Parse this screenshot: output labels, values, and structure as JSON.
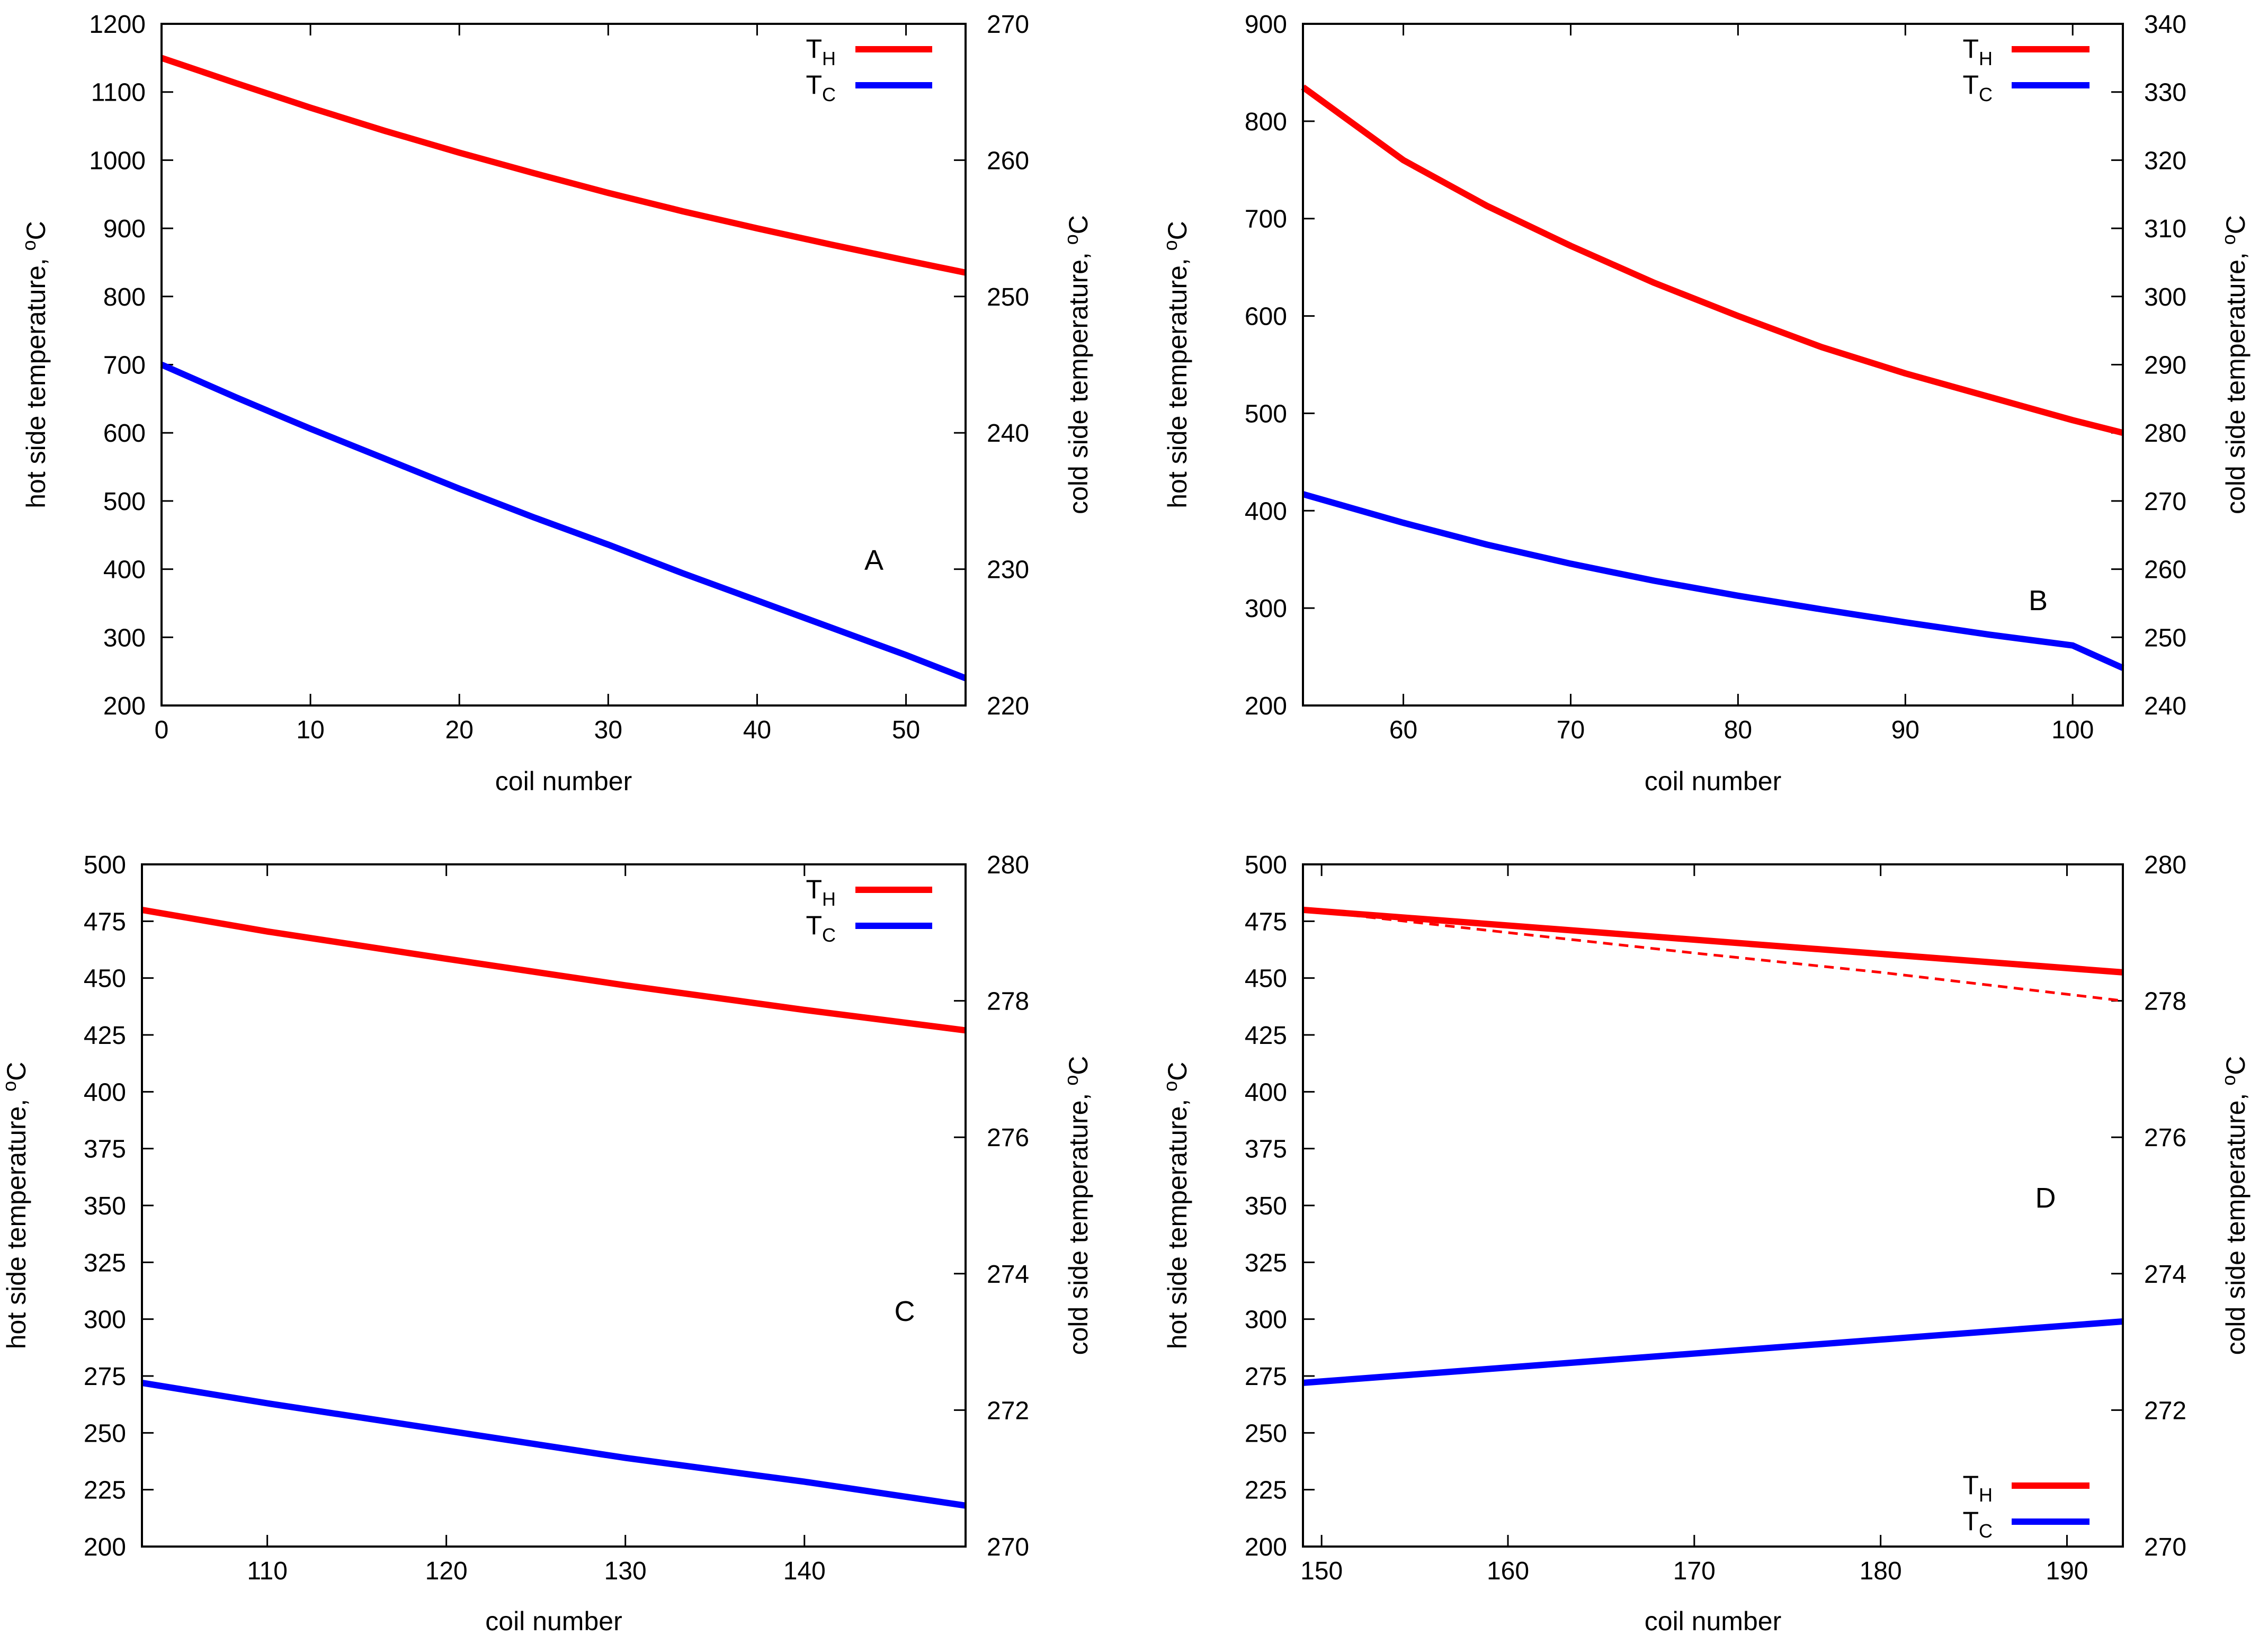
{
  "chart_data": [
    {
      "type": "line",
      "panel": "A",
      "xlabel": "coil number",
      "ylabel": "hot side temperature, ",
      "ylabel_sup": "o",
      "ylabel_unit": "C",
      "y2label": "cold side temperature, ",
      "y2label_sup": "o",
      "y2label_unit": "C",
      "xlim": [
        0,
        54
      ],
      "ylim": [
        200,
        1200
      ],
      "y2lim": [
        220,
        270
      ],
      "xticks": [
        0,
        10,
        20,
        30,
        40,
        50
      ],
      "yticks": [
        200,
        300,
        400,
        500,
        600,
        700,
        800,
        900,
        1000,
        1100,
        1200
      ],
      "y2ticks": [
        220,
        230,
        240,
        250,
        260,
        270
      ],
      "legend": {
        "position": "top-right",
        "entries": [
          {
            "main": "T",
            "sub": "H",
            "color": "#ff0000"
          },
          {
            "main": "T",
            "sub": "C",
            "color": "#0000ff"
          }
        ]
      },
      "series": [
        {
          "name": "TH",
          "axis": "y",
          "color": "#ff0000",
          "dashed": false,
          "x": [
            0,
            5,
            10,
            15,
            20,
            25,
            30,
            35,
            40,
            45,
            50,
            54
          ],
          "values": [
            1150,
            1113,
            1077,
            1043,
            1011,
            981,
            952,
            925,
            900,
            876,
            853,
            835
          ]
        },
        {
          "name": "TC",
          "axis": "y2",
          "color": "#0000ff",
          "dashed": false,
          "x": [
            0,
            5,
            10,
            15,
            20,
            25,
            30,
            35,
            40,
            45,
            50,
            54
          ],
          "values": [
            245,
            242.6,
            240.3,
            238.1,
            235.9,
            233.8,
            231.8,
            229.7,
            227.7,
            225.7,
            223.7,
            222
          ]
        }
      ]
    },
    {
      "type": "line",
      "panel": "B",
      "xlabel": "coil number",
      "ylabel": "hot side temperature, ",
      "ylabel_sup": "o",
      "ylabel_unit": "C",
      "y2label": "cold side temperature, ",
      "y2label_sup": "o",
      "y2label_unit": "C",
      "xlim": [
        54,
        103
      ],
      "ylim": [
        200,
        900
      ],
      "y2lim": [
        240,
        340
      ],
      "xticks": [
        60,
        70,
        80,
        90,
        100
      ],
      "yticks": [
        200,
        300,
        400,
        500,
        600,
        700,
        800,
        900
      ],
      "y2ticks": [
        240,
        250,
        260,
        270,
        280,
        290,
        300,
        310,
        320,
        330,
        340
      ],
      "legend": {
        "position": "top-right",
        "entries": [
          {
            "main": "T",
            "sub": "H",
            "color": "#ff0000"
          },
          {
            "main": "T",
            "sub": "C",
            "color": "#0000ff"
          }
        ]
      },
      "series": [
        {
          "name": "TH",
          "axis": "y",
          "color": "#ff0000",
          "dashed": false,
          "x": [
            54,
            60,
            65,
            70,
            75,
            80,
            85,
            90,
            95,
            100,
            103
          ],
          "values": [
            835,
            760,
            713,
            672,
            634,
            600,
            568,
            541,
            517,
            493,
            480
          ]
        },
        {
          "name": "TC",
          "axis": "y2",
          "color": "#0000ff",
          "dashed": false,
          "x": [
            54,
            60,
            65,
            70,
            75,
            80,
            85,
            90,
            95,
            100,
            103
          ],
          "values": [
            271,
            266.8,
            263.6,
            260.8,
            258.3,
            256.1,
            254.1,
            252.2,
            250.4,
            248.8,
            245.5
          ]
        }
      ]
    },
    {
      "type": "line",
      "panel": "C",
      "xlabel": "coil number",
      "ylabel": "hot side temperature, ",
      "ylabel_sup": "o",
      "ylabel_unit": "C",
      "y2label": "cold side temperature, ",
      "y2label_sup": "o",
      "y2label_unit": "C",
      "xlim": [
        103,
        149
      ],
      "ylim": [
        200,
        500
      ],
      "y2lim": [
        270,
        280
      ],
      "xticks": [
        110,
        120,
        130,
        140
      ],
      "yticks": [
        200,
        225,
        250,
        275,
        300,
        325,
        350,
        375,
        400,
        425,
        450,
        475,
        500
      ],
      "y2ticks": [
        270,
        272,
        274,
        276,
        278,
        280
      ],
      "legend": {
        "position": "top-right",
        "entries": [
          {
            "main": "T",
            "sub": "H",
            "color": "#ff0000"
          },
          {
            "main": "T",
            "sub": "C",
            "color": "#0000ff"
          }
        ]
      },
      "series": [
        {
          "name": "TH",
          "axis": "y",
          "color": "#ff0000",
          "dashed": false,
          "x": [
            103,
            110,
            120,
            130,
            140,
            149
          ],
          "values": [
            480,
            470.5,
            458.5,
            446.8,
            436,
            427
          ]
        },
        {
          "name": "TC",
          "axis": "y2",
          "color": "#0000ff",
          "dashed": false,
          "x": [
            103,
            110,
            120,
            130,
            140,
            149
          ],
          "values": [
            272.4,
            272.1,
            271.7,
            271.3,
            270.95,
            270.6
          ]
        }
      ]
    },
    {
      "type": "line",
      "panel": "D",
      "xlabel": "coil number",
      "ylabel": "hot side temperature, ",
      "ylabel_sup": "o",
      "ylabel_unit": "C",
      "y2label": "cold side temperature, ",
      "y2label_sup": "o",
      "y2label_unit": "C",
      "xlim": [
        149,
        193
      ],
      "ylim": [
        200,
        500
      ],
      "y2lim": [
        270,
        280
      ],
      "xticks": [
        150,
        160,
        170,
        180,
        190
      ],
      "yticks": [
        200,
        225,
        250,
        275,
        300,
        325,
        350,
        375,
        400,
        425,
        450,
        475,
        500
      ],
      "y2ticks": [
        270,
        272,
        274,
        276,
        278,
        280
      ],
      "legend": {
        "position": "bottom-right",
        "entries": [
          {
            "main": "T",
            "sub": "H",
            "color": "#ff0000"
          },
          {
            "main": "T",
            "sub": "C",
            "color": "#0000ff"
          }
        ]
      },
      "series": [
        {
          "name": "TH",
          "axis": "y",
          "color": "#ff0000",
          "dashed": false,
          "x": [
            149,
            193
          ],
          "values": [
            480,
            452.5
          ]
        },
        {
          "name": "TH (dashed)",
          "axis": "y",
          "color": "#ff0000",
          "dashed": true,
          "x": [
            149,
            160,
            170,
            180,
            193
          ],
          "values": [
            480,
            470,
            461,
            452.5,
            440
          ]
        },
        {
          "name": "TC",
          "axis": "y2",
          "color": "#0000ff",
          "dashed": false,
          "x": [
            149,
            193
          ],
          "values": [
            272.4,
            273.3
          ]
        }
      ]
    }
  ]
}
